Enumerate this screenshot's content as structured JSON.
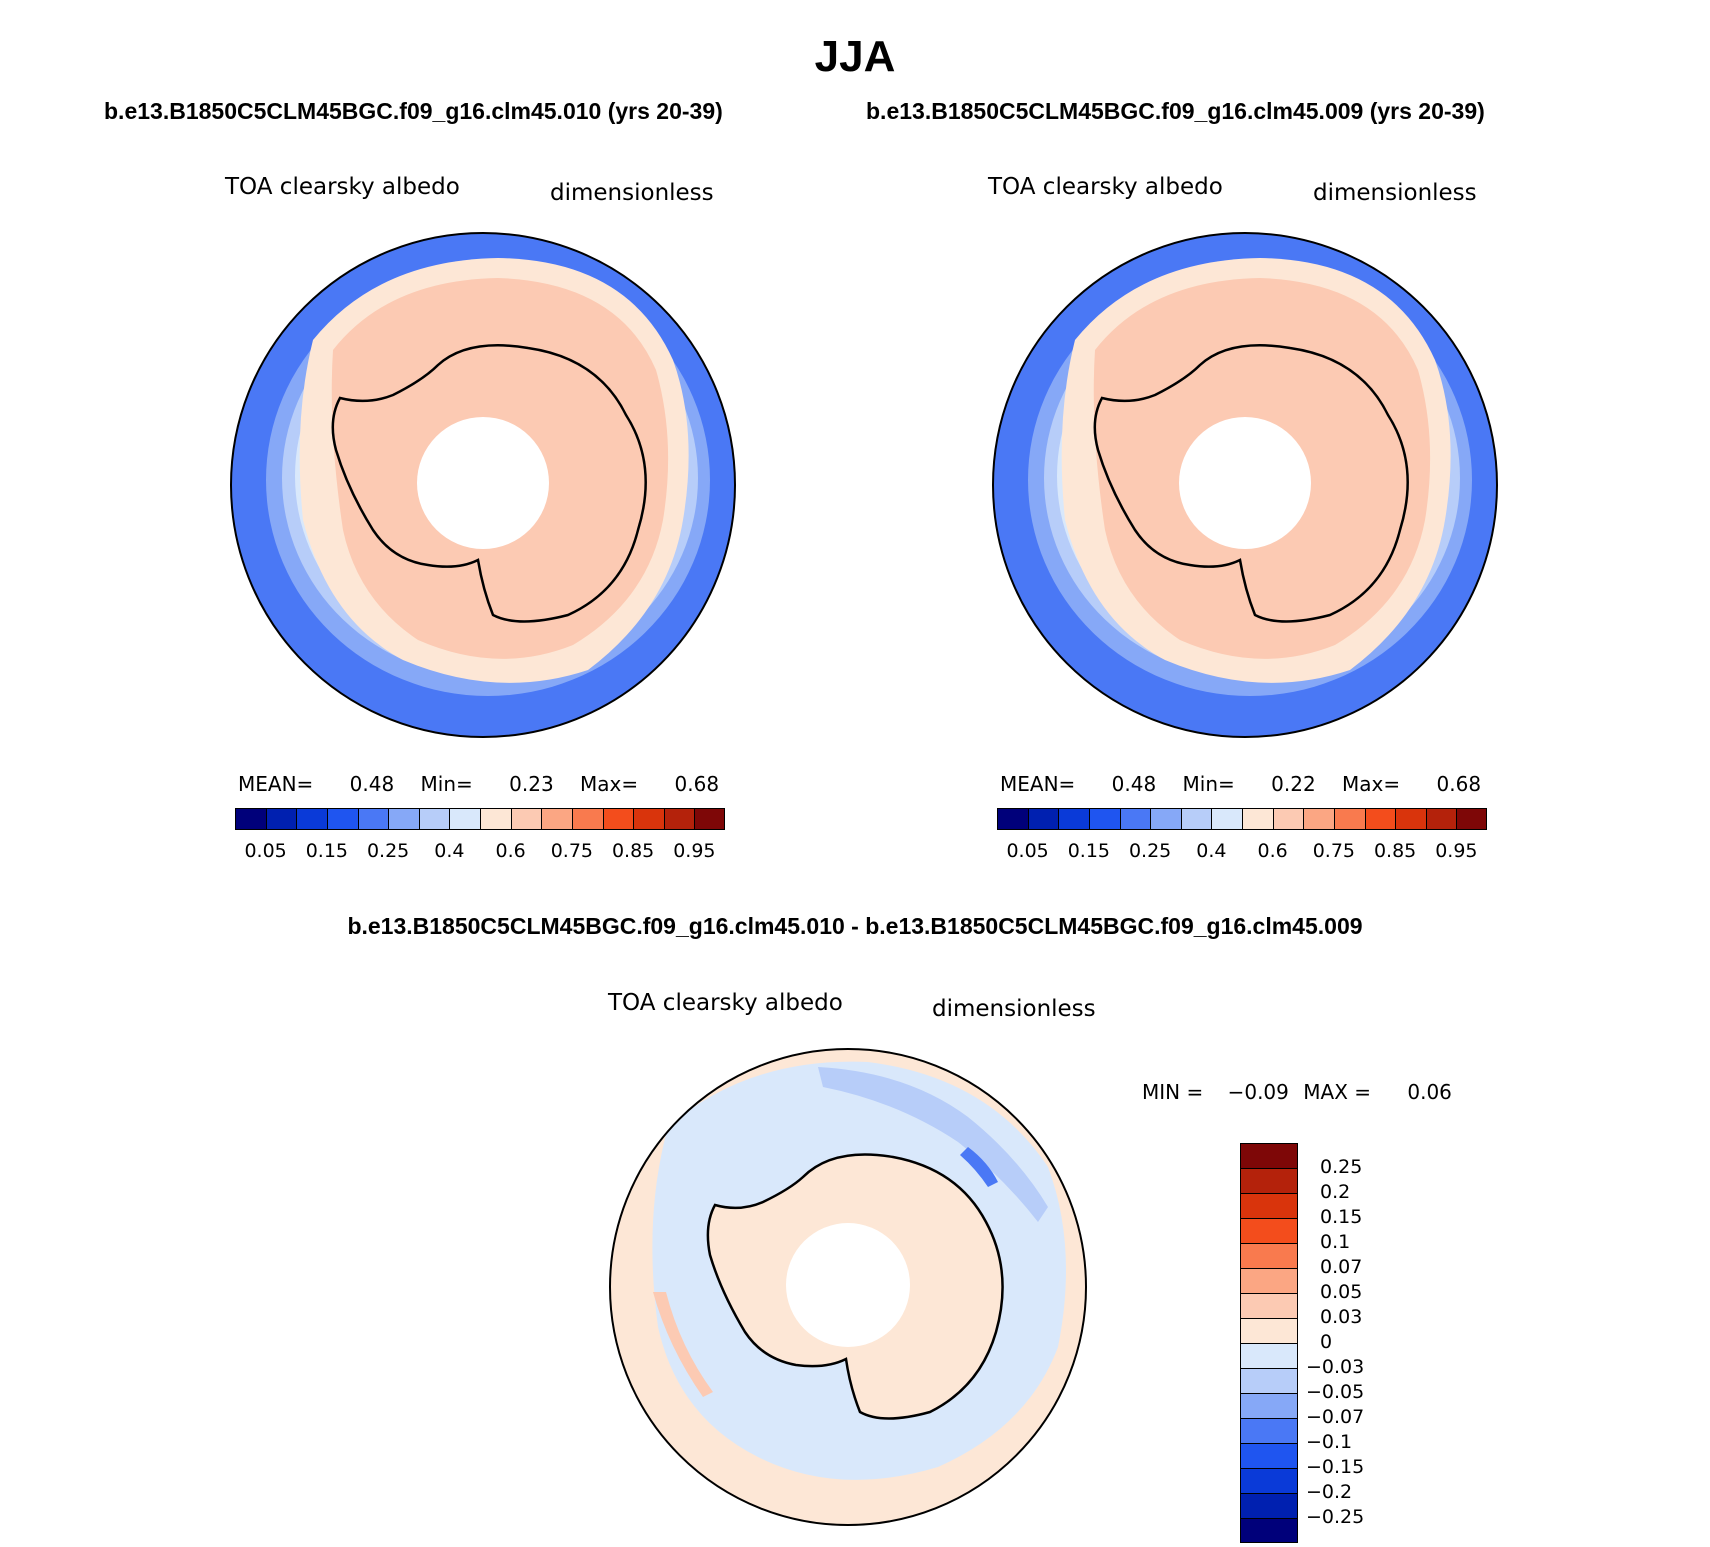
{
  "page": {
    "title": "JJA"
  },
  "colors": {
    "palette": [
      "#00007a",
      "#0020b0",
      "#0a3ad8",
      "#1f55f0",
      "#4a78f5",
      "#86a8f7",
      "#b7cdf9",
      "#d9e8fb",
      "#fde7d6",
      "#fccab3",
      "#fba683",
      "#f97a4e",
      "#f34d1c",
      "#d9340c",
      "#b4220b",
      "#7e0707"
    ],
    "ocean_deep": "#4a78f5",
    "ocean_mid": "#86a8f7",
    "ocean_light": "#b7cdf9",
    "ice_light": "#d9e8fb",
    "land_light": "#fde7d6",
    "land_mid": "#fccab3",
    "diff_pos": "#fde7d6",
    "diff_neg": "#d9e8fb"
  },
  "chart_data": [
    {
      "type": "heatmap",
      "projection": "south-polar-stereographic",
      "title": "b.e13.B1850C5CLM45BGC.f09_g16.clm45.010 (yrs 20-39)",
      "field_label": "TOA clearsky albedo",
      "units_label": "dimensionless",
      "stats": {
        "mean_label": "MEAN=",
        "mean": "0.48",
        "min_label": "Min=",
        "min": "0.23",
        "max_label": "Max=",
        "max": "0.68"
      },
      "colorbar_ticks": [
        "0.05",
        "0.15",
        "0.25",
        "0.4",
        "0.6",
        "0.75",
        "0.85",
        "0.95"
      ]
    },
    {
      "type": "heatmap",
      "projection": "south-polar-stereographic",
      "title": "b.e13.B1850C5CLM45BGC.f09_g16.clm45.009 (yrs 20-39)",
      "field_label": "TOA clearsky albedo",
      "units_label": "dimensionless",
      "stats": {
        "mean_label": "MEAN=",
        "mean": "0.48",
        "min_label": "Min=",
        "min": "0.22",
        "max_label": "Max=",
        "max": "0.68"
      },
      "colorbar_ticks": [
        "0.05",
        "0.15",
        "0.25",
        "0.4",
        "0.6",
        "0.75",
        "0.85",
        "0.95"
      ]
    },
    {
      "type": "heatmap",
      "projection": "south-polar-stereographic",
      "title": "b.e13.B1850C5CLM45BGC.f09_g16.clm45.010 - b.e13.B1850C5CLM45BGC.f09_g16.clm45.009",
      "field_label": "TOA clearsky albedo",
      "units_label": "dimensionless",
      "stats": {
        "min_label": "MIN =",
        "min": "−0.09",
        "max_label": "MAX =",
        "max": "0.06"
      },
      "colorbar_ticks": [
        "0.25",
        "0.2",
        "0.15",
        "0.1",
        "0.07",
        "0.05",
        "0.03",
        "0",
        "−0.03",
        "−0.05",
        "−0.07",
        "−0.1",
        "−0.15",
        "−0.2",
        "−0.25"
      ]
    }
  ]
}
